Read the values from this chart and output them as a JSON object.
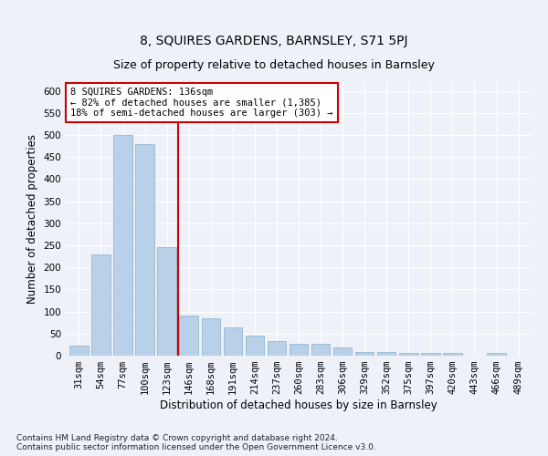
{
  "title": "8, SQUIRES GARDENS, BARNSLEY, S71 5PJ",
  "subtitle": "Size of property relative to detached houses in Barnsley",
  "xlabel": "Distribution of detached houses by size in Barnsley",
  "ylabel": "Number of detached properties",
  "categories": [
    "31sqm",
    "54sqm",
    "77sqm",
    "100sqm",
    "123sqm",
    "146sqm",
    "168sqm",
    "191sqm",
    "214sqm",
    "237sqm",
    "260sqm",
    "283sqm",
    "306sqm",
    "329sqm",
    "352sqm",
    "375sqm",
    "397sqm",
    "420sqm",
    "443sqm",
    "466sqm",
    "489sqm"
  ],
  "values": [
    22,
    230,
    500,
    480,
    245,
    90,
    85,
    65,
    45,
    33,
    27,
    27,
    18,
    8,
    8,
    6,
    6,
    6,
    0,
    6,
    0
  ],
  "bar_color": "#b8d0e8",
  "bar_edge_color": "#8ab0cc",
  "vline_color": "#cc0000",
  "annotation_line1": "8 SQUIRES GARDENS: 136sqm",
  "annotation_line2": "← 82% of detached houses are smaller (1,385)",
  "annotation_line3": "18% of semi-detached houses are larger (303) →",
  "annotation_box_color": "#ffffff",
  "annotation_box_edge_color": "#cc0000",
  "ylim": [
    0,
    620
  ],
  "yticks": [
    0,
    50,
    100,
    150,
    200,
    250,
    300,
    350,
    400,
    450,
    500,
    550,
    600
  ],
  "title_fontsize": 10,
  "subtitle_fontsize": 9,
  "xlabel_fontsize": 8.5,
  "ylabel_fontsize": 8.5,
  "tick_fontsize": 7.5,
  "annot_fontsize": 7.5,
  "footer_text": "Contains HM Land Registry data © Crown copyright and database right 2024.\nContains public sector information licensed under the Open Government Licence v3.0.",
  "background_color": "#eef2f8",
  "plot_background_color": "#eef2f8"
}
